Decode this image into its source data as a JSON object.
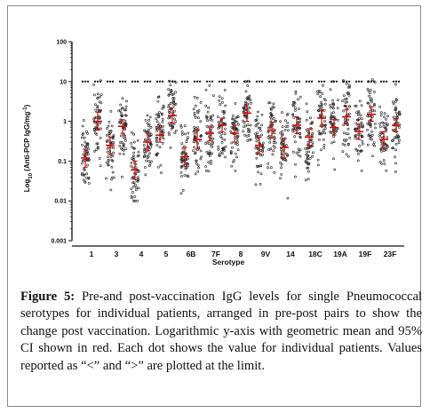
{
  "caption": {
    "label": "Figure 5:",
    "text": " Pre-and post-vaccination IgG levels for single Pneumococcal serotypes for individual patients, arranged in pre-post pairs to show the change post vaccination. Logarithmic y-axis with geometric mean and 95% CI shown in red. Each dot shows the value for individual patients. Values reported as “<” and “>” are plotted at the limit."
  },
  "chart_data": {
    "type": "scatter",
    "ylabel": "Log10 (Anti-PCP IgG/mg-1)",
    "ylabel_parts": {
      "pre": "Log",
      "sub": "10",
      "mid": " (Anti-PCP IgG/mg",
      "sup": "-1",
      "post": ")"
    },
    "xlabel": "Serotype",
    "yscale": "log",
    "ylim": [
      0.001,
      100
    ],
    "yticks": [
      "100",
      "10",
      "1",
      "0.1",
      "0.01",
      "0.001"
    ],
    "ytick_values": [
      100,
      10,
      1,
      0.1,
      0.01,
      0.001
    ],
    "categories": [
      "1",
      "3",
      "4",
      "5",
      "6B",
      "7F",
      "8",
      "9V",
      "14",
      "18C",
      "19A",
      "19F",
      "23F"
    ],
    "ci_color": "#cc1111",
    "point_color": "#222222",
    "groups": [
      {
        "serotype": "1",
        "pre": {
          "mean": 0.12,
          "lo": 0.07,
          "hi": 0.2
        },
        "post": {
          "mean": 1.0,
          "lo": 0.6,
          "hi": 1.7
        }
      },
      {
        "serotype": "3",
        "pre": {
          "mean": 0.25,
          "lo": 0.15,
          "hi": 0.4
        },
        "post": {
          "mean": 0.75,
          "lo": 0.5,
          "hi": 1.1
        }
      },
      {
        "serotype": "4",
        "pre": {
          "mean": 0.06,
          "lo": 0.035,
          "hi": 0.1
        },
        "post": {
          "mean": 0.3,
          "lo": 0.18,
          "hi": 0.5
        }
      },
      {
        "serotype": "5",
        "pre": {
          "mean": 0.45,
          "lo": 0.3,
          "hi": 0.7
        },
        "post": {
          "mean": 1.4,
          "lo": 0.9,
          "hi": 2.2
        }
      },
      {
        "serotype": "6B",
        "pre": {
          "mean": 0.13,
          "lo": 0.08,
          "hi": 0.22
        },
        "post": {
          "mean": 0.35,
          "lo": 0.2,
          "hi": 0.6
        }
      },
      {
        "serotype": "7F",
        "pre": {
          "mean": 0.5,
          "lo": 0.32,
          "hi": 0.75
        },
        "post": {
          "mean": 0.8,
          "lo": 0.55,
          "hi": 1.2
        }
      },
      {
        "serotype": "8",
        "pre": {
          "mean": 0.5,
          "lo": 0.3,
          "hi": 0.8
        },
        "post": {
          "mean": 1.6,
          "lo": 1.0,
          "hi": 2.6
        }
      },
      {
        "serotype": "9V",
        "pre": {
          "mean": 0.25,
          "lo": 0.15,
          "hi": 0.4
        },
        "post": {
          "mean": 0.6,
          "lo": 0.38,
          "hi": 0.95
        }
      },
      {
        "serotype": "14",
        "pre": {
          "mean": 0.22,
          "lo": 0.12,
          "hi": 0.38
        },
        "post": {
          "mean": 0.8,
          "lo": 0.5,
          "hi": 1.3
        }
      },
      {
        "serotype": "18C",
        "pre": {
          "mean": 0.4,
          "lo": 0.25,
          "hi": 0.65
        },
        "post": {
          "mean": 1.2,
          "lo": 0.75,
          "hi": 1.9
        }
      },
      {
        "serotype": "19A",
        "pre": {
          "mean": 0.7,
          "lo": 0.45,
          "hi": 1.1
        },
        "post": {
          "mean": 1.3,
          "lo": 0.85,
          "hi": 2.0
        }
      },
      {
        "serotype": "19F",
        "pre": {
          "mean": 0.55,
          "lo": 0.35,
          "hi": 0.85
        },
        "post": {
          "mean": 1.5,
          "lo": 1.0,
          "hi": 2.3
        }
      },
      {
        "serotype": "23F",
        "pre": {
          "mean": 0.35,
          "lo": 0.22,
          "hi": 0.55
        },
        "post": {
          "mean": 0.8,
          "lo": 0.55,
          "hi": 1.15
        }
      }
    ]
  }
}
